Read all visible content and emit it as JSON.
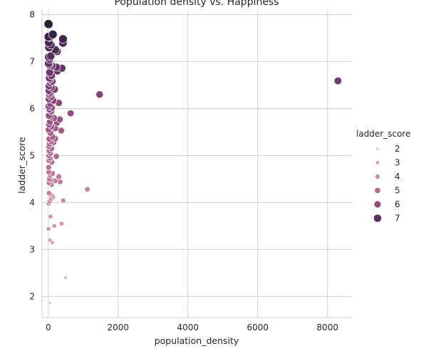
{
  "chart_data": {
    "type": "scatter",
    "title": "Population density vs. Happiness",
    "xlabel": "population_density",
    "ylabel": "ladder_score",
    "xlim": [
      -180,
      8700
    ],
    "ylim": [
      1.55,
      8.1
    ],
    "xticks": [
      0,
      2000,
      4000,
      6000,
      8000
    ],
    "yticks": [
      2,
      3,
      4,
      5,
      6,
      7,
      8
    ],
    "grid": true,
    "legend": {
      "title": "ladder_score",
      "placement": "right",
      "entries": [
        {
          "label": "2",
          "value": 2
        },
        {
          "label": "3",
          "value": 3
        },
        {
          "label": "4",
          "value": 4
        },
        {
          "label": "5",
          "value": 5
        },
        {
          "label": "6",
          "value": 6
        },
        {
          "label": "7",
          "value": 7
        }
      ]
    },
    "points": [
      {
        "x": 5,
        "y": 7.8
      },
      {
        "x": 20,
        "y": 7.79
      },
      {
        "x": 130,
        "y": 7.58
      },
      {
        "x": 5,
        "y": 7.53
      },
      {
        "x": 40,
        "y": 7.52
      },
      {
        "x": 420,
        "y": 7.48
      },
      {
        "x": 420,
        "y": 7.4
      },
      {
        "x": 15,
        "y": 7.41
      },
      {
        "x": 70,
        "y": 7.36
      },
      {
        "x": 20,
        "y": 7.3
      },
      {
        "x": 200,
        "y": 7.25
      },
      {
        "x": 250,
        "y": 7.22
      },
      {
        "x": 70,
        "y": 7.12
      },
      {
        "x": 10,
        "y": 7.1
      },
      {
        "x": 30,
        "y": 7.05
      },
      {
        "x": 5,
        "y": 6.96
      },
      {
        "x": 25,
        "y": 6.93
      },
      {
        "x": 100,
        "y": 6.91
      },
      {
        "x": 230,
        "y": 6.88
      },
      {
        "x": 390,
        "y": 6.86
      },
      {
        "x": 260,
        "y": 6.8
      },
      {
        "x": 40,
        "y": 6.77
      },
      {
        "x": 90,
        "y": 6.7
      },
      {
        "x": 30,
        "y": 6.65
      },
      {
        "x": 55,
        "y": 6.62
      },
      {
        "x": 110,
        "y": 6.58
      },
      {
        "x": 60,
        "y": 6.55
      },
      {
        "x": 8300,
        "y": 6.59
      },
      {
        "x": 20,
        "y": 6.48
      },
      {
        "x": 90,
        "y": 6.45
      },
      {
        "x": 180,
        "y": 6.41
      },
      {
        "x": 15,
        "y": 6.38
      },
      {
        "x": 60,
        "y": 6.34
      },
      {
        "x": 35,
        "y": 6.3
      },
      {
        "x": 1470,
        "y": 6.3
      },
      {
        "x": 80,
        "y": 6.25
      },
      {
        "x": 20,
        "y": 6.2
      },
      {
        "x": 140,
        "y": 6.17
      },
      {
        "x": 300,
        "y": 6.12
      },
      {
        "x": 60,
        "y": 6.1
      },
      {
        "x": 10,
        "y": 6.05
      },
      {
        "x": 100,
        "y": 6.02
      },
      {
        "x": 40,
        "y": 5.98
      },
      {
        "x": 80,
        "y": 5.94
      },
      {
        "x": 640,
        "y": 5.9
      },
      {
        "x": 15,
        "y": 5.85
      },
      {
        "x": 70,
        "y": 5.83
      },
      {
        "x": 160,
        "y": 5.8
      },
      {
        "x": 330,
        "y": 5.77
      },
      {
        "x": 50,
        "y": 5.72
      },
      {
        "x": 250,
        "y": 5.7
      },
      {
        "x": 25,
        "y": 5.66
      },
      {
        "x": 90,
        "y": 5.62
      },
      {
        "x": 200,
        "y": 5.58
      },
      {
        "x": 370,
        "y": 5.53
      },
      {
        "x": 10,
        "y": 5.55
      },
      {
        "x": 60,
        "y": 5.48
      },
      {
        "x": 120,
        "y": 5.4
      },
      {
        "x": 30,
        "y": 5.35
      },
      {
        "x": 200,
        "y": 5.36
      },
      {
        "x": 80,
        "y": 5.3
      },
      {
        "x": 40,
        "y": 5.25
      },
      {
        "x": 150,
        "y": 5.28
      },
      {
        "x": 20,
        "y": 5.2
      },
      {
        "x": 90,
        "y": 5.15
      },
      {
        "x": 30,
        "y": 5.1
      },
      {
        "x": 60,
        "y": 5.05
      },
      {
        "x": 20,
        "y": 5.0
      },
      {
        "x": 230,
        "y": 4.98
      },
      {
        "x": 50,
        "y": 4.95
      },
      {
        "x": 20,
        "y": 4.9
      },
      {
        "x": 100,
        "y": 4.86
      },
      {
        "x": 10,
        "y": 4.75
      },
      {
        "x": 15,
        "y": 4.65
      },
      {
        "x": 120,
        "y": 4.62
      },
      {
        "x": 60,
        "y": 4.58
      },
      {
        "x": 300,
        "y": 4.55
      },
      {
        "x": 30,
        "y": 4.5
      },
      {
        "x": 80,
        "y": 4.48
      },
      {
        "x": 200,
        "y": 4.46
      },
      {
        "x": 340,
        "y": 4.44
      },
      {
        "x": 20,
        "y": 4.42
      },
      {
        "x": 90,
        "y": 4.38
      },
      {
        "x": 1120,
        "y": 4.28
      },
      {
        "x": 20,
        "y": 4.2
      },
      {
        "x": 60,
        "y": 4.17
      },
      {
        "x": 100,
        "y": 4.15
      },
      {
        "x": 130,
        "y": 4.12
      },
      {
        "x": 80,
        "y": 4.08
      },
      {
        "x": 430,
        "y": 4.04
      },
      {
        "x": 40,
        "y": 4.02
      },
      {
        "x": 10,
        "y": 3.98
      },
      {
        "x": 60,
        "y": 3.7
      },
      {
        "x": 380,
        "y": 3.55
      },
      {
        "x": 170,
        "y": 3.5
      },
      {
        "x": 5,
        "y": 3.44
      },
      {
        "x": 40,
        "y": 3.2
      },
      {
        "x": 110,
        "y": 3.15
      },
      {
        "x": 490,
        "y": 2.4
      },
      {
        "x": 50,
        "y": 1.86
      }
    ]
  }
}
